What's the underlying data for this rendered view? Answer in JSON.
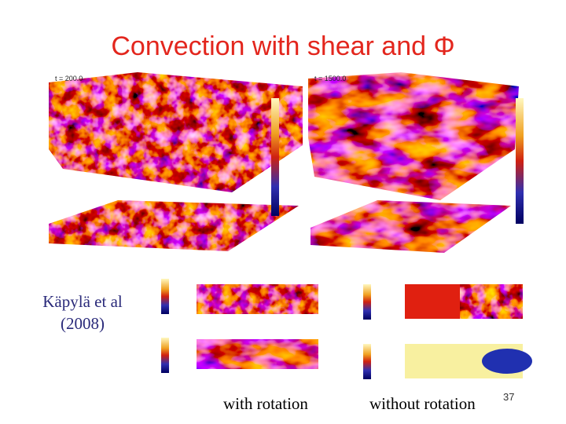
{
  "title": "Convection with shear and Φ",
  "citation": [
    "Käpylä et al",
    "(2008)"
  ],
  "captions": [
    "with rotation",
    "without rotation"
  ],
  "page_number": "37",
  "figure_labels": {
    "left_time": "t = 200.0",
    "right_time": "t = 1500.0"
  }
}
